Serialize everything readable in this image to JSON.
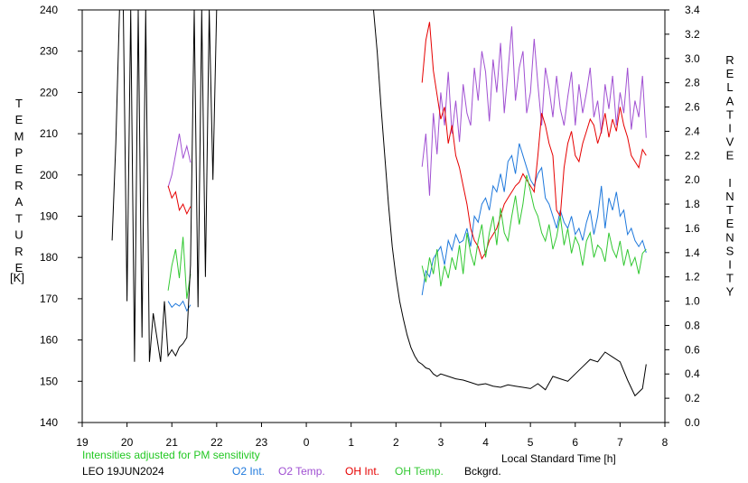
{
  "chart_data": {
    "type": "line",
    "left_axis": {
      "label": "TEMPERATURE",
      "unit": "[K]",
      "ylim": [
        140,
        240
      ],
      "ticks": [
        "140",
        "150",
        "160",
        "170",
        "180",
        "190",
        "200",
        "210",
        "220",
        "230",
        "240"
      ]
    },
    "right_axis": {
      "label": "RELATIVE INTENSITY",
      "ylim": [
        0.0,
        3.4
      ],
      "ticks": [
        "0.0",
        "0.2",
        "0.4",
        "0.6",
        "0.8",
        "1.0",
        "1.2",
        "1.4",
        "1.6",
        "1.8",
        "2.0",
        "2.2",
        "2.4",
        "2.6",
        "2.8",
        "3.0",
        "3.2",
        "3.4"
      ]
    },
    "x_axis": {
      "label": "Local Standard Time [h]",
      "xlim": [
        19,
        8
      ],
      "ticks": [
        "19",
        "20",
        "21",
        "22",
        "23",
        "0",
        "1",
        "2",
        "3",
        "4",
        "5",
        "6",
        "7",
        "8"
      ]
    },
    "note": "Intensities adjusted for PM sensitivity",
    "station_date": "LEO 19JUN2024",
    "series": [
      {
        "name": "O2 Int.",
        "color": "#1e78dc",
        "axis": "right",
        "x": [
          "20:55",
          "21:00",
          "21:05",
          "21:10",
          "21:15",
          "21:20",
          "21:25",
          "2:35",
          "2:40",
          "2:45",
          "2:50",
          "2:55",
          "3:00",
          "3:05",
          "3:10",
          "3:15",
          "3:20",
          "3:25",
          "3:30",
          "3:35",
          "3:40",
          "3:45",
          "3:50",
          "3:55",
          "4:00",
          "4:05",
          "4:10",
          "4:15",
          "4:20",
          "4:25",
          "4:30",
          "4:35",
          "4:40",
          "4:45",
          "4:50",
          "4:55",
          "5:00",
          "5:05",
          "5:10",
          "5:15",
          "5:20",
          "5:25",
          "5:30",
          "5:35",
          "5:40",
          "5:45",
          "5:50",
          "5:55",
          "6:00",
          "6:05",
          "6:10",
          "6:15",
          "6:20",
          "6:25",
          "6:30",
          "6:35",
          "6:40",
          "6:45",
          "6:50",
          "6:55",
          "7:00",
          "7:05",
          "7:10",
          "7:15",
          "7:20",
          "7:25",
          "7:30",
          "7:35"
        ],
        "y": [
          1.0,
          0.95,
          0.98,
          0.96,
          1.0,
          0.92,
          0.97,
          1.05,
          1.25,
          1.2,
          1.35,
          1.4,
          1.45,
          1.3,
          1.5,
          1.42,
          1.55,
          1.48,
          1.5,
          1.6,
          1.45,
          1.7,
          1.65,
          1.8,
          1.85,
          1.75,
          1.95,
          1.9,
          2.05,
          1.9,
          2.15,
          2.2,
          2.05,
          2.3,
          2.2,
          2.1,
          2.0,
          1.95,
          2.05,
          2.1,
          1.85,
          1.8,
          1.7,
          1.6,
          1.75,
          1.65,
          1.6,
          1.7,
          1.55,
          1.6,
          1.5,
          1.65,
          1.75,
          1.55,
          1.7,
          1.95,
          1.6,
          1.85,
          1.75,
          1.9,
          1.7,
          1.75,
          1.55,
          1.6,
          1.5,
          1.45,
          1.5,
          1.4
        ]
      },
      {
        "name": "O2 Temp.",
        "color": "#a050d2",
        "axis": "left",
        "x": [
          "20:55",
          "21:00",
          "21:05",
          "21:10",
          "21:15",
          "21:20",
          "21:25",
          "2:35",
          "2:40",
          "2:45",
          "2:50",
          "2:55",
          "3:00",
          "3:05",
          "3:10",
          "3:15",
          "3:20",
          "3:25",
          "3:30",
          "3:35",
          "3:40",
          "3:45",
          "3:50",
          "3:55",
          "4:00",
          "4:05",
          "4:10",
          "4:15",
          "4:20",
          "4:25",
          "4:30",
          "4:35",
          "4:40",
          "4:45",
          "4:50",
          "4:55",
          "5:00",
          "5:05",
          "5:10",
          "5:15",
          "5:20",
          "5:25",
          "5:30",
          "5:35",
          "5:40",
          "5:45",
          "5:50",
          "5:55",
          "6:00",
          "6:05",
          "6:10",
          "6:15",
          "6:20",
          "6:25",
          "6:30",
          "6:35",
          "6:40",
          "6:45",
          "6:50",
          "6:55",
          "7:00",
          "7:05",
          "7:10",
          "7:15",
          "7:20",
          "7:25",
          "7:30",
          "7:35"
        ],
        "y": [
          197,
          200,
          205,
          210,
          204,
          207,
          203,
          202,
          210,
          195,
          215,
          205,
          220,
          212,
          225,
          210,
          218,
          208,
          222,
          215,
          212,
          226,
          218,
          230,
          225,
          213,
          228,
          220,
          232,
          215,
          225,
          236,
          218,
          226,
          230,
          215,
          220,
          233,
          222,
          212,
          226,
          221,
          214,
          224,
          216,
          212,
          219,
          225,
          212,
          222,
          215,
          220,
          226,
          214,
          218,
          210,
          222,
          216,
          224,
          212,
          220,
          215,
          226,
          211,
          218,
          214,
          224,
          209
        ]
      },
      {
        "name": "OH Int.",
        "color": "#e60000",
        "axis": "right",
        "x": [
          "20:55",
          "21:00",
          "21:05",
          "21:10",
          "21:15",
          "21:20",
          "21:25",
          "2:35",
          "2:40",
          "2:45",
          "2:50",
          "2:55",
          "3:00",
          "3:05",
          "3:10",
          "3:15",
          "3:20",
          "3:25",
          "3:30",
          "3:35",
          "3:40",
          "3:45",
          "3:50",
          "3:55",
          "4:00",
          "4:05",
          "4:10",
          "4:15",
          "4:20",
          "4:25",
          "4:30",
          "4:35",
          "4:40",
          "4:45",
          "4:50",
          "4:55",
          "5:00",
          "5:05",
          "5:10",
          "5:15",
          "5:20",
          "5:25",
          "5:30",
          "5:35",
          "5:40",
          "5:45",
          "5:50",
          "5:55",
          "6:00",
          "6:05",
          "6:10",
          "6:15",
          "6:20",
          "6:25",
          "6:30",
          "6:35",
          "6:40",
          "6:45",
          "6:50",
          "6:55",
          "7:00",
          "7:05",
          "7:10",
          "7:15",
          "7:20",
          "7:25",
          "7:30",
          "7:35"
        ],
        "y": [
          1.95,
          1.85,
          1.9,
          1.75,
          1.8,
          1.72,
          1.78,
          2.8,
          3.15,
          3.3,
          2.9,
          2.7,
          2.5,
          2.6,
          2.3,
          2.45,
          2.2,
          2.1,
          1.95,
          1.8,
          1.6,
          1.5,
          1.45,
          1.35,
          1.4,
          1.5,
          1.55,
          1.6,
          1.7,
          1.8,
          1.85,
          1.9,
          1.95,
          1.98,
          2.05,
          2.0,
          1.95,
          1.9,
          2.2,
          2.55,
          2.45,
          2.3,
          2.2,
          1.75,
          1.7,
          2.1,
          2.3,
          2.4,
          2.2,
          2.15,
          2.3,
          2.4,
          2.5,
          2.45,
          2.3,
          2.4,
          2.55,
          2.35,
          2.5,
          2.4,
          2.6,
          2.45,
          2.35,
          2.2,
          2.15,
          2.1,
          2.25,
          2.2
        ]
      },
      {
        "name": "OH Temp.",
        "color": "#32c832",
        "axis": "left",
        "x": [
          "20:55",
          "21:00",
          "21:05",
          "21:10",
          "21:15",
          "21:20",
          "21:25",
          "2:35",
          "2:40",
          "2:45",
          "2:50",
          "2:55",
          "3:00",
          "3:05",
          "3:10",
          "3:15",
          "3:20",
          "3:25",
          "3:30",
          "3:35",
          "3:40",
          "3:45",
          "3:50",
          "3:55",
          "4:00",
          "4:05",
          "4:10",
          "4:15",
          "4:20",
          "4:25",
          "4:30",
          "4:35",
          "4:40",
          "4:45",
          "4:50",
          "4:55",
          "5:00",
          "5:05",
          "5:10",
          "5:15",
          "5:20",
          "5:25",
          "5:30",
          "5:35",
          "5:40",
          "5:45",
          "5:50",
          "5:55",
          "6:00",
          "6:05",
          "6:10",
          "6:15",
          "6:20",
          "6:25",
          "6:30",
          "6:35",
          "6:40",
          "6:45",
          "6:50",
          "6:55",
          "7:00",
          "7:05",
          "7:10",
          "7:15",
          "7:20",
          "7:25",
          "7:30",
          "7:35"
        ],
        "y": [
          172,
          178,
          182,
          175,
          185,
          170,
          176,
          178,
          174,
          180,
          176,
          182,
          173,
          178,
          175,
          180,
          177,
          183,
          176,
          186,
          181,
          178,
          184,
          188,
          180,
          186,
          190,
          183,
          192,
          186,
          184,
          190,
          195,
          188,
          193,
          200,
          196,
          192,
          190,
          186,
          184,
          188,
          182,
          185,
          190,
          183,
          187,
          181,
          185,
          183,
          178,
          184,
          186,
          180,
          183,
          182,
          179,
          186,
          182,
          180,
          184,
          178,
          182,
          178,
          180,
          176,
          181,
          182
        ]
      },
      {
        "name": "Bckgrd.",
        "color": "#000000",
        "axis": "right",
        "x": [
          "19:40",
          "19:45",
          "19:50",
          "19:55",
          "20:00",
          "20:05",
          "20:10",
          "20:15",
          "20:20",
          "20:25",
          "20:30",
          "20:35",
          "20:40",
          "20:45",
          "20:50",
          "20:55",
          "21:00",
          "21:05",
          "21:10",
          "21:15",
          "21:20",
          "21:25",
          "21:30",
          "21:35",
          "21:40",
          "21:45",
          "21:50",
          "21:55",
          "22:00",
          "1:30",
          "1:35",
          "1:40",
          "1:45",
          "1:50",
          "1:55",
          "2:00",
          "2:05",
          "2:10",
          "2:15",
          "2:20",
          "2:25",
          "2:30",
          "2:35",
          "2:40",
          "2:45",
          "2:50",
          "2:55",
          "3:00",
          "3:10",
          "3:20",
          "3:30",
          "3:40",
          "3:50",
          "4:00",
          "4:10",
          "4:20",
          "4:30",
          "4:40",
          "4:50",
          "5:00",
          "5:10",
          "5:20",
          "5:30",
          "5:40",
          "5:50",
          "6:00",
          "6:10",
          "6:20",
          "6:30",
          "6:40",
          "6:50",
          "7:00",
          "7:10",
          "7:20",
          "7:30",
          "7:35"
        ],
        "y": [
          1.5,
          2.3,
          3.4,
          3.4,
          1.0,
          3.4,
          0.5,
          3.4,
          0.7,
          3.4,
          0.5,
          0.9,
          0.7,
          0.5,
          1.0,
          0.55,
          0.6,
          0.55,
          0.62,
          0.65,
          0.7,
          1.3,
          3.4,
          0.95,
          3.4,
          1.2,
          3.4,
          2.0,
          3.4,
          3.4,
          3.05,
          2.6,
          2.2,
          1.8,
          1.45,
          1.2,
          1.0,
          0.85,
          0.72,
          0.62,
          0.55,
          0.5,
          0.48,
          0.45,
          0.44,
          0.4,
          0.38,
          0.4,
          0.38,
          0.36,
          0.35,
          0.33,
          0.31,
          0.32,
          0.3,
          0.29,
          0.31,
          0.3,
          0.29,
          0.28,
          0.32,
          0.27,
          0.38,
          0.36,
          0.34,
          0.4,
          0.46,
          0.52,
          0.5,
          0.58,
          0.54,
          0.5,
          0.35,
          0.22,
          0.28,
          0.48
        ]
      }
    ]
  }
}
